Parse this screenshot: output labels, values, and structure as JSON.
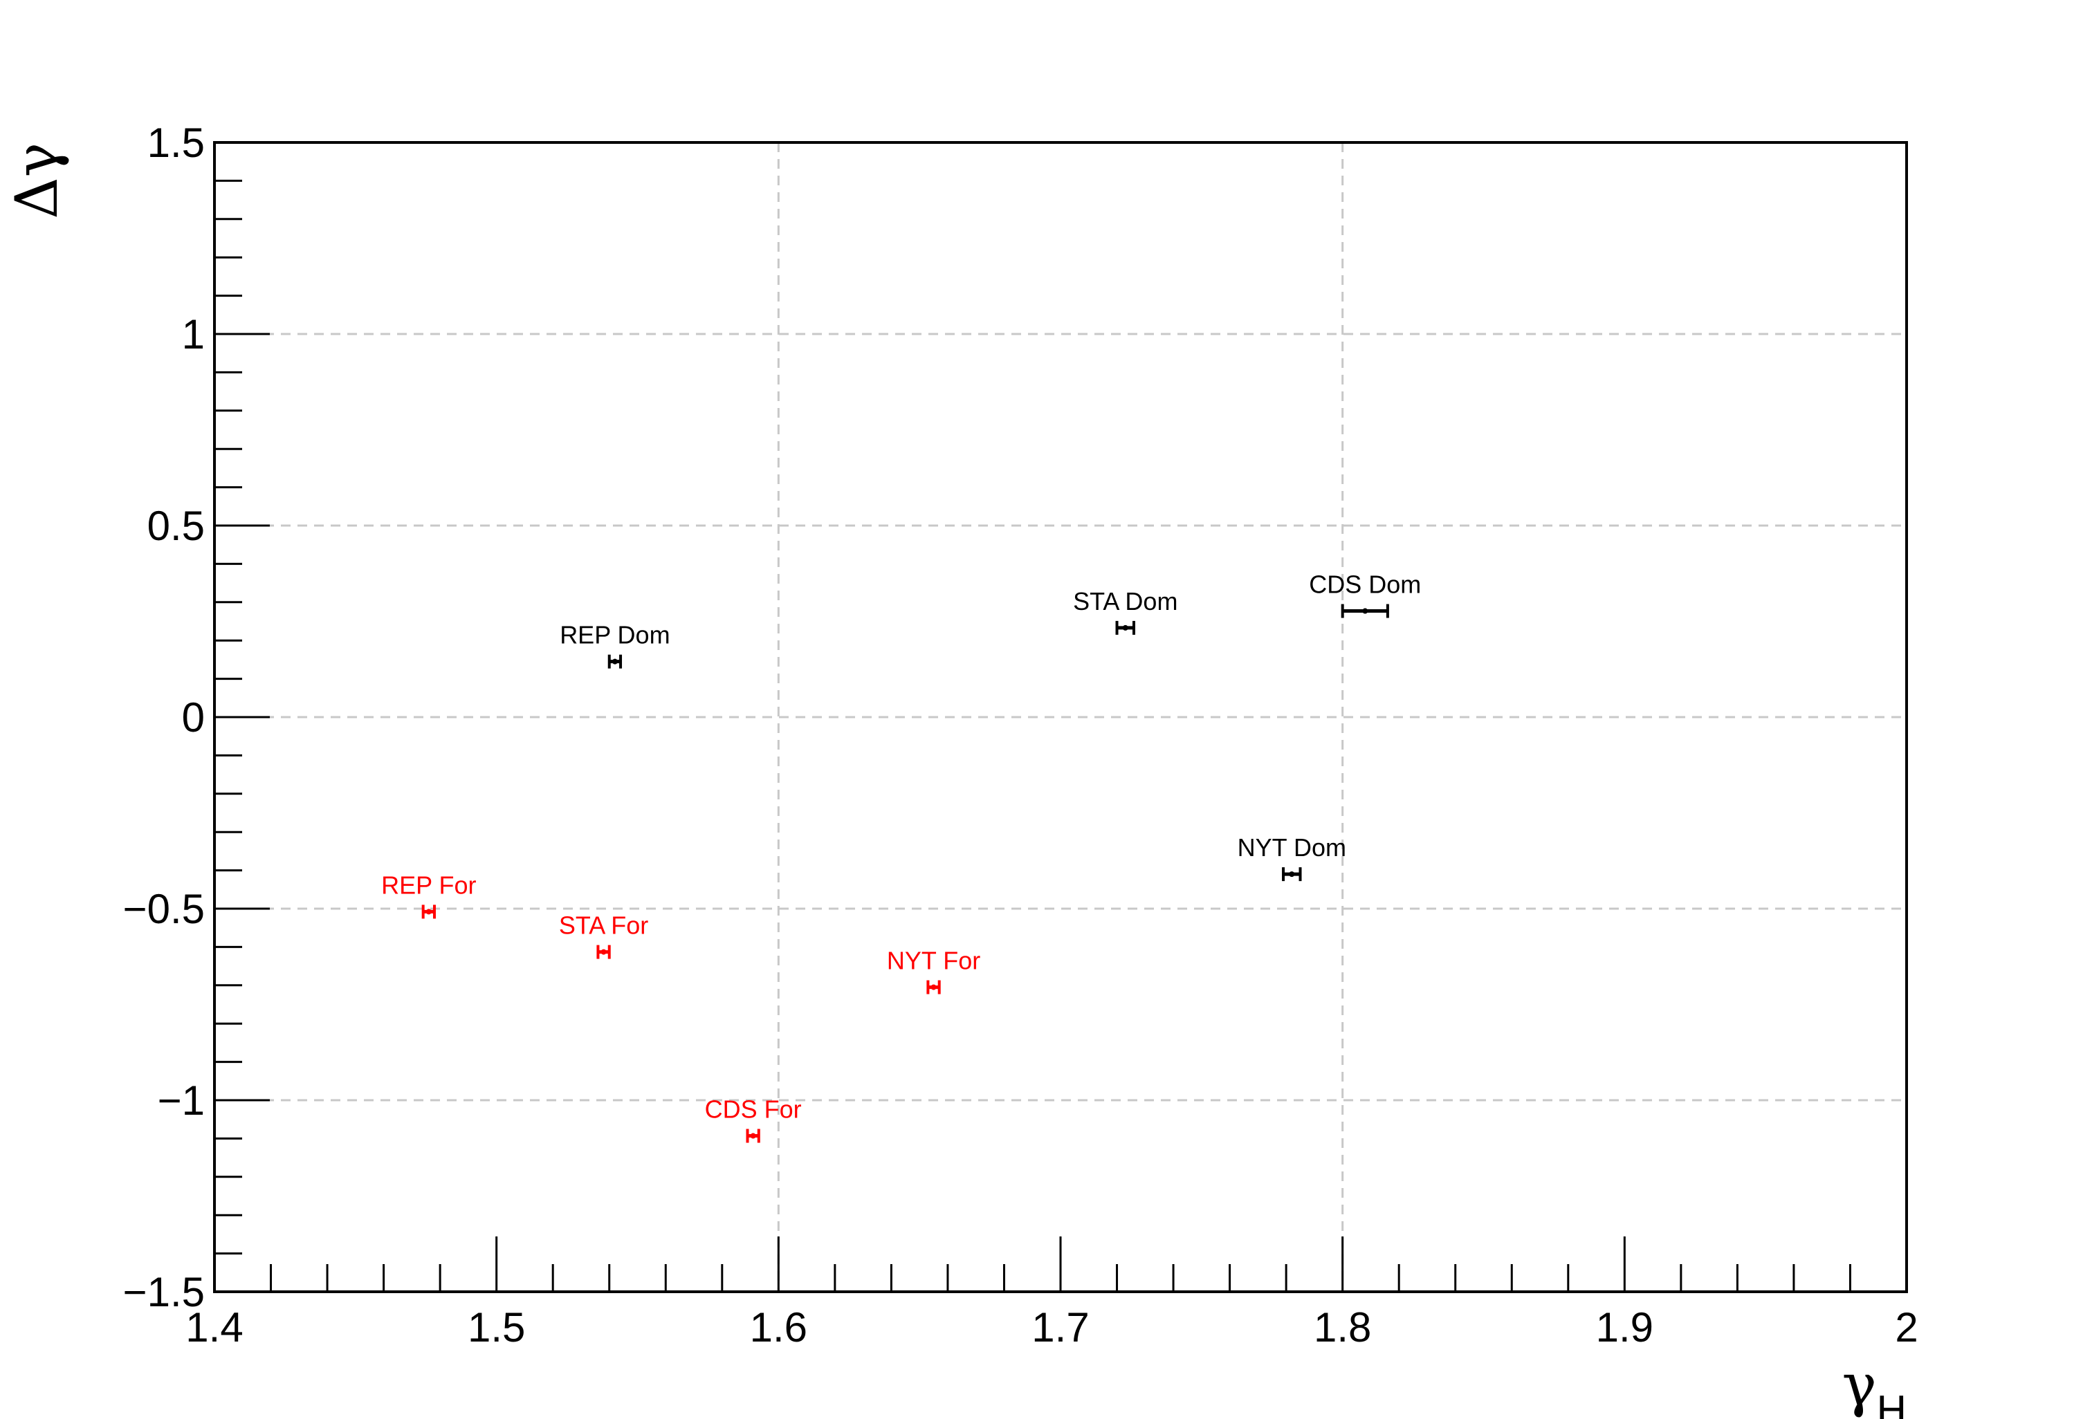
{
  "chart_data": {
    "type": "scatter",
    "title": "",
    "xlabel": "γ",
    "xlabel_sub": "H",
    "ylabel": "Δγ",
    "xlim": [
      1.4,
      2.0
    ],
    "ylim": [
      -1.5,
      1.5
    ],
    "xticks": [
      {
        "value": 1.4,
        "label": "1.4"
      },
      {
        "value": 1.5,
        "label": "1.5"
      },
      {
        "value": 1.6,
        "label": "1.6"
      },
      {
        "value": 1.7,
        "label": "1.7"
      },
      {
        "value": 1.8,
        "label": "1.8"
      },
      {
        "value": 1.9,
        "label": "1.9"
      },
      {
        "value": 2.0,
        "label": "2"
      }
    ],
    "yticks": [
      {
        "value": -1.5,
        "label": "−1.5"
      },
      {
        "value": -1.0,
        "label": "−1"
      },
      {
        "value": -0.5,
        "label": "−0.5"
      },
      {
        "value": 0.0,
        "label": "0"
      },
      {
        "value": 0.5,
        "label": "0.5"
      },
      {
        "value": 1.0,
        "label": "1"
      },
      {
        "value": 1.5,
        "label": "1.5"
      }
    ],
    "xgrid": [
      1.6,
      1.8
    ],
    "ygrid": [
      -1.0,
      -0.5,
      0.0,
      0.5,
      1.0
    ],
    "points": [
      {
        "label": "REP Dom",
        "x": 1.542,
        "y": 0.145,
        "xerr": 0.002,
        "color": "#000000"
      },
      {
        "label": "STA Dom",
        "x": 1.723,
        "y": 0.233,
        "xerr": 0.003,
        "color": "#000000"
      },
      {
        "label": "CDS Dom",
        "x": 1.808,
        "y": 0.277,
        "xerr": 0.008,
        "color": "#000000"
      },
      {
        "label": "NYT Dom",
        "x": 1.782,
        "y": -0.41,
        "xerr": 0.003,
        "color": "#000000"
      },
      {
        "label": "REP For",
        "x": 1.476,
        "y": -0.508,
        "xerr": 0.002,
        "color": "#ff0000"
      },
      {
        "label": "STA For",
        "x": 1.538,
        "y": -0.613,
        "xerr": 0.002,
        "color": "#ff0000"
      },
      {
        "label": "NYT For",
        "x": 1.655,
        "y": -0.705,
        "xerr": 0.002,
        "color": "#ff0000"
      },
      {
        "label": "CDS For",
        "x": 1.591,
        "y": -1.093,
        "xerr": 0.002,
        "color": "#ff0000"
      }
    ]
  }
}
